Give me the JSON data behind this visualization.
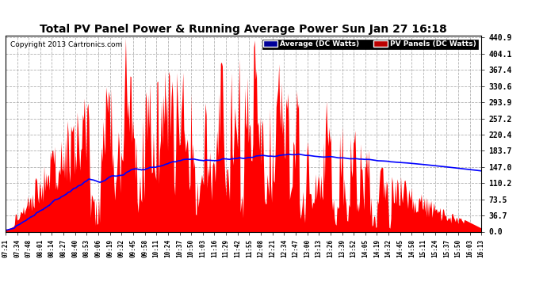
{
  "title": "Total PV Panel Power & Running Average Power Sun Jan 27 16:18",
  "copyright": "Copyright 2013 Cartronics.com",
  "legend_avg": "Average (DC Watts)",
  "legend_pv": "PV Panels (DC Watts)",
  "y_ticks": [
    0.0,
    36.7,
    73.5,
    110.2,
    147.0,
    183.7,
    220.4,
    257.2,
    293.9,
    330.6,
    367.4,
    404.1,
    440.9
  ],
  "ymin": 0.0,
  "ymax": 440.9,
  "x_labels": [
    "07:21",
    "07:34",
    "07:48",
    "08:01",
    "08:14",
    "08:27",
    "08:40",
    "08:53",
    "09:06",
    "09:19",
    "09:32",
    "09:45",
    "09:58",
    "10:11",
    "10:24",
    "10:37",
    "10:50",
    "11:03",
    "11:16",
    "11:29",
    "11:42",
    "11:55",
    "12:08",
    "12:21",
    "12:34",
    "12:47",
    "13:00",
    "13:13",
    "13:26",
    "13:39",
    "13:52",
    "14:05",
    "14:19",
    "14:32",
    "14:45",
    "14:58",
    "15:11",
    "15:24",
    "15:37",
    "15:50",
    "16:03",
    "16:13"
  ],
  "pv_color": "#FF0000",
  "avg_color": "#0000FF",
  "bg_color": "#FFFFFF",
  "grid_color": "#AAAAAA",
  "title_color": "#000000",
  "legend_avg_bg": "#000099",
  "legend_pv_bg": "#BB0000"
}
